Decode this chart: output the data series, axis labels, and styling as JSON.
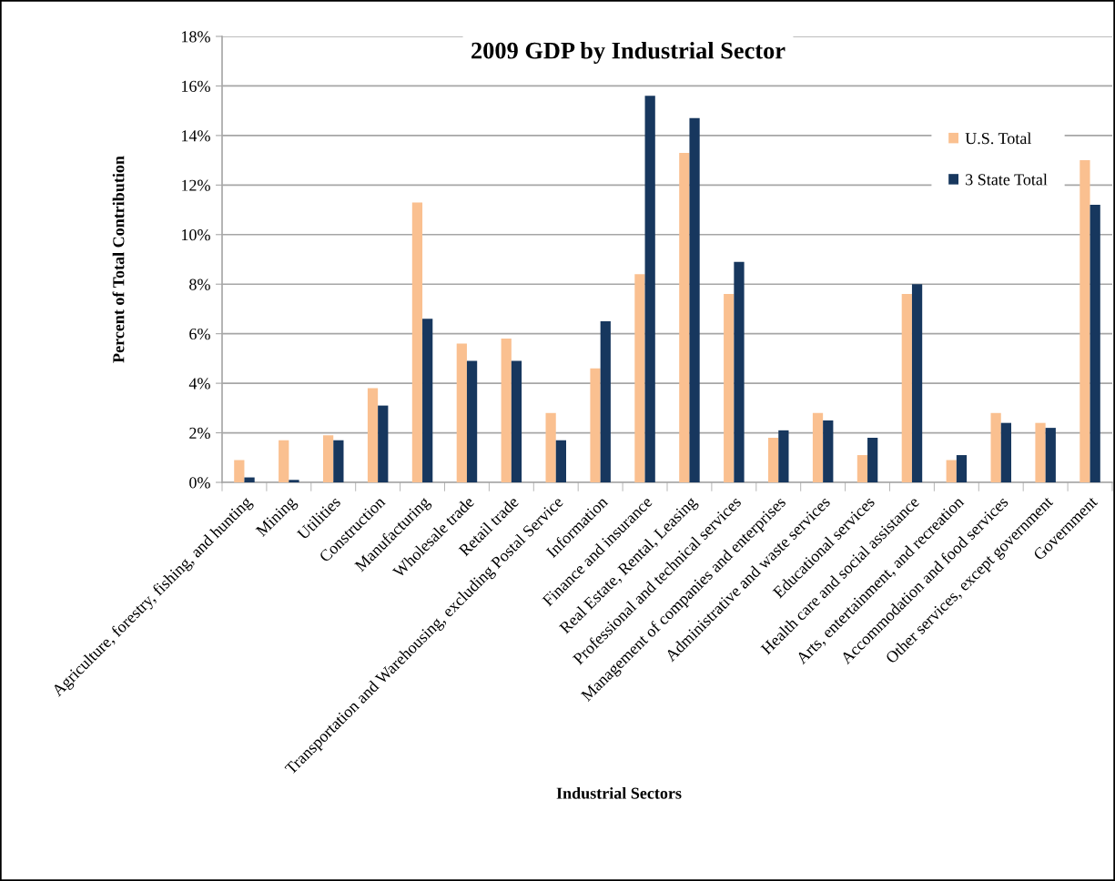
{
  "chart_data": {
    "type": "bar",
    "title": "2009 GDP by Industrial Sector",
    "xlabel": "Industrial Sectors",
    "ylabel": "Percent of Total Contribution",
    "categories": [
      "Agriculture, forestry, fishing, and hunting",
      "Mining",
      "Utilities",
      "Construction",
      "Manufacturing",
      "Wholesale trade",
      "Retail trade",
      "Transportation and Warehousing, excluding Postal Service",
      "Information",
      "Finance and insurance",
      "Real Estate, Rental, Leasing",
      "Professional and technical services",
      "Management of companies and enterprises",
      "Administrative and waste services",
      "Educational services",
      "Health care and social assistance",
      "Arts, entertainment, and recreation",
      "Accommodation and food services",
      "Other services, except government",
      "Government"
    ],
    "series": [
      {
        "name": "U.S. Total",
        "color": "#fac090",
        "values": [
          0.9,
          1.7,
          1.9,
          3.8,
          11.3,
          5.6,
          5.8,
          2.8,
          4.6,
          8.4,
          13.3,
          7.6,
          1.8,
          2.8,
          1.1,
          7.6,
          0.9,
          2.8,
          2.4,
          13.0
        ]
      },
      {
        "name": "3 State Total",
        "color": "#17375e",
        "values": [
          0.2,
          0.1,
          1.7,
          3.1,
          6.6,
          4.9,
          4.9,
          1.7,
          6.5,
          15.6,
          14.7,
          8.9,
          2.1,
          2.5,
          1.8,
          8.0,
          1.1,
          2.4,
          2.2,
          11.2
        ]
      }
    ],
    "ylim": [
      0,
      18
    ],
    "yticks": [
      {
        "value": 0,
        "label": "0%"
      },
      {
        "value": 2,
        "label": "2%"
      },
      {
        "value": 4,
        "label": "4%"
      },
      {
        "value": 6,
        "label": "6%"
      },
      {
        "value": 8,
        "label": "8%"
      },
      {
        "value": 10,
        "label": "10%"
      },
      {
        "value": 12,
        "label": "12%"
      },
      {
        "value": 14,
        "label": "14%"
      },
      {
        "value": 16,
        "label": "16%"
      },
      {
        "value": 18,
        "label": "18%"
      }
    ],
    "grid": "y",
    "legend": "top right"
  }
}
